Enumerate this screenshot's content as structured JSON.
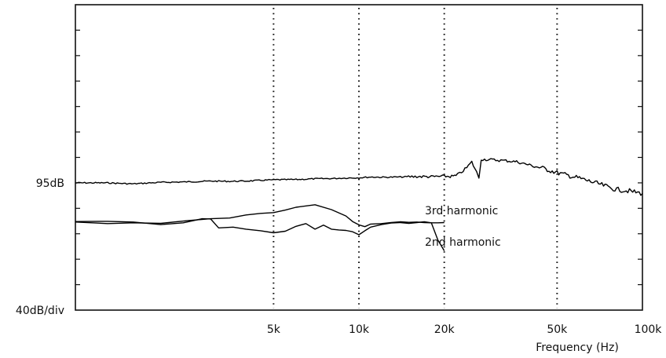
{
  "chart_data": {
    "type": "line",
    "title": "",
    "xlabel": "Frequency (Hz)",
    "ylabel": "",
    "x_scale": "log",
    "xlim": [
      1000,
      100000
    ],
    "x_ticks": [
      {
        "value": 5000,
        "label": "5k"
      },
      {
        "value": 10000,
        "label": "10k"
      },
      {
        "value": 20000,
        "label": "20k"
      },
      {
        "value": 50000,
        "label": "50k"
      },
      {
        "value": 100000,
        "label": "100k"
      }
    ],
    "y_unit": "dB",
    "ylim": [
      45,
      165
    ],
    "y_labels": [
      {
        "value": 95,
        "label": "95dB"
      },
      {
        "value": 45,
        "label": "40dB/div"
      }
    ],
    "grid": {
      "vertical": "dotted",
      "horizontal": false
    },
    "series": [
      {
        "name": "",
        "x": [
          1000,
          1300,
          1600,
          2000,
          2500,
          3000,
          3500,
          4000,
          5000,
          6000,
          7000,
          8000,
          9000,
          10000,
          11000,
          12000,
          14000,
          16000,
          18000,
          20000,
          21000,
          22000,
          23000,
          24000,
          25000,
          26000,
          26500,
          27000,
          30000,
          33000,
          36000,
          40000,
          45000,
          50000,
          60000,
          70000,
          80000,
          90000,
          100000
        ],
        "y": [
          95,
          95,
          94.6,
          95.2,
          95.4,
          95.7,
          95.6,
          95.7,
          96.2,
          96.3,
          96.6,
          96.7,
          96.9,
          97.0,
          97.3,
          97.2,
          97.3,
          97.5,
          97.4,
          97.6,
          97.5,
          97.8,
          99.2,
          101.0,
          103.2,
          99.2,
          97.0,
          104.3,
          104.0,
          103.7,
          103.3,
          102.0,
          100.6,
          99.0,
          96.8,
          94.6,
          92.5,
          91.8,
          90.8
        ]
      },
      {
        "name": "3rd harmonic",
        "x": [
          1000,
          1300,
          1600,
          2000,
          2500,
          3000,
          3500,
          4000,
          4500,
          5000,
          5500,
          6000,
          7000,
          8000,
          9000,
          9500,
          10000,
          10500,
          11000,
          12000,
          13000,
          14000,
          15000,
          16000,
          17000,
          18000,
          19000,
          20000
        ],
        "y": [
          79.6,
          79.0,
          79.3,
          79.1,
          80.2,
          80.9,
          81.2,
          82.4,
          83.0,
          83.3,
          84.3,
          85.4,
          86.4,
          84.5,
          82.0,
          79.8,
          78.5,
          77.8,
          78.8,
          79.0,
          79.4,
          79.7,
          79.5,
          79.6,
          79.4,
          79.3,
          79.3,
          79.4
        ]
      },
      {
        "name": "2nd harmonic",
        "x": [
          1000,
          1300,
          1600,
          2000,
          2400,
          2800,
          3000,
          3200,
          3600,
          4000,
          4500,
          5000,
          5500,
          6000,
          6500,
          7000,
          7500,
          8000,
          8500,
          9000,
          9500,
          10000,
          10500,
          11000,
          12000,
          13000,
          14000,
          15000,
          16000,
          17000,
          18000,
          19000,
          20000
        ],
        "y": [
          79.8,
          79.9,
          79.6,
          78.6,
          79.3,
          80.9,
          80.8,
          77.3,
          77.6,
          76.8,
          76.2,
          75.4,
          76.0,
          77.9,
          79.0,
          76.8,
          78.4,
          76.8,
          76.5,
          76.3,
          75.8,
          74.6,
          76.2,
          77.6,
          78.6,
          79.2,
          79.4,
          79.1,
          79.4,
          79.7,
          79.3,
          72.5,
          68.3
        ]
      }
    ]
  }
}
